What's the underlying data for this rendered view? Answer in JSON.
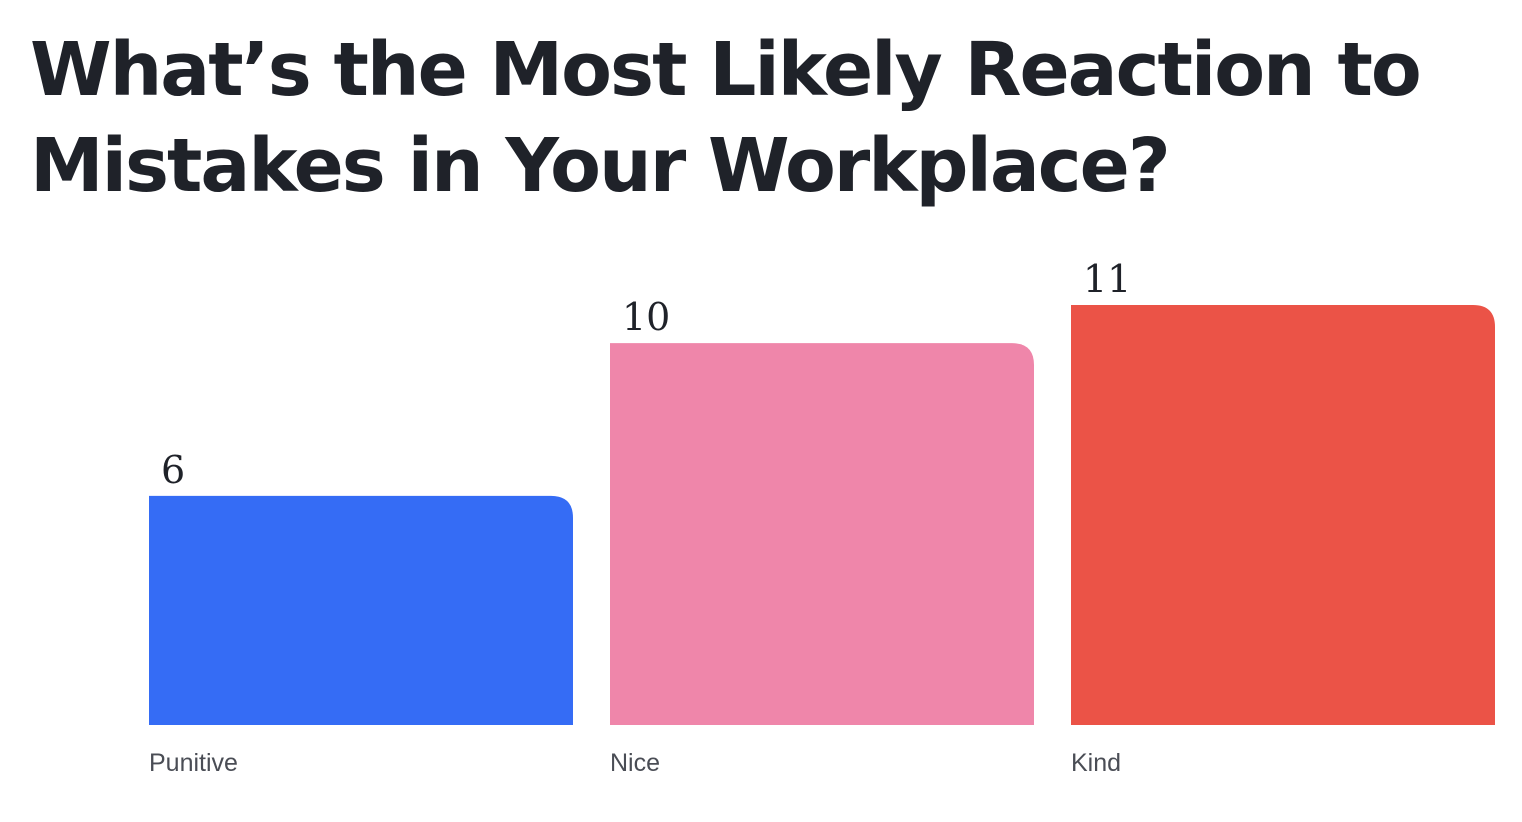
{
  "chart_data": {
    "type": "bar",
    "title": "What’s the Most Likely Reaction to Mistakes in Your Workplace?",
    "categories": [
      "Punitive",
      "Nice",
      "Kind"
    ],
    "values": [
      6,
      10,
      11
    ],
    "colors": [
      "#356cf5",
      "#ef86aa",
      "#eb5347"
    ],
    "ylim": [
      0,
      11
    ],
    "grid": false,
    "data_labels": true
  }
}
